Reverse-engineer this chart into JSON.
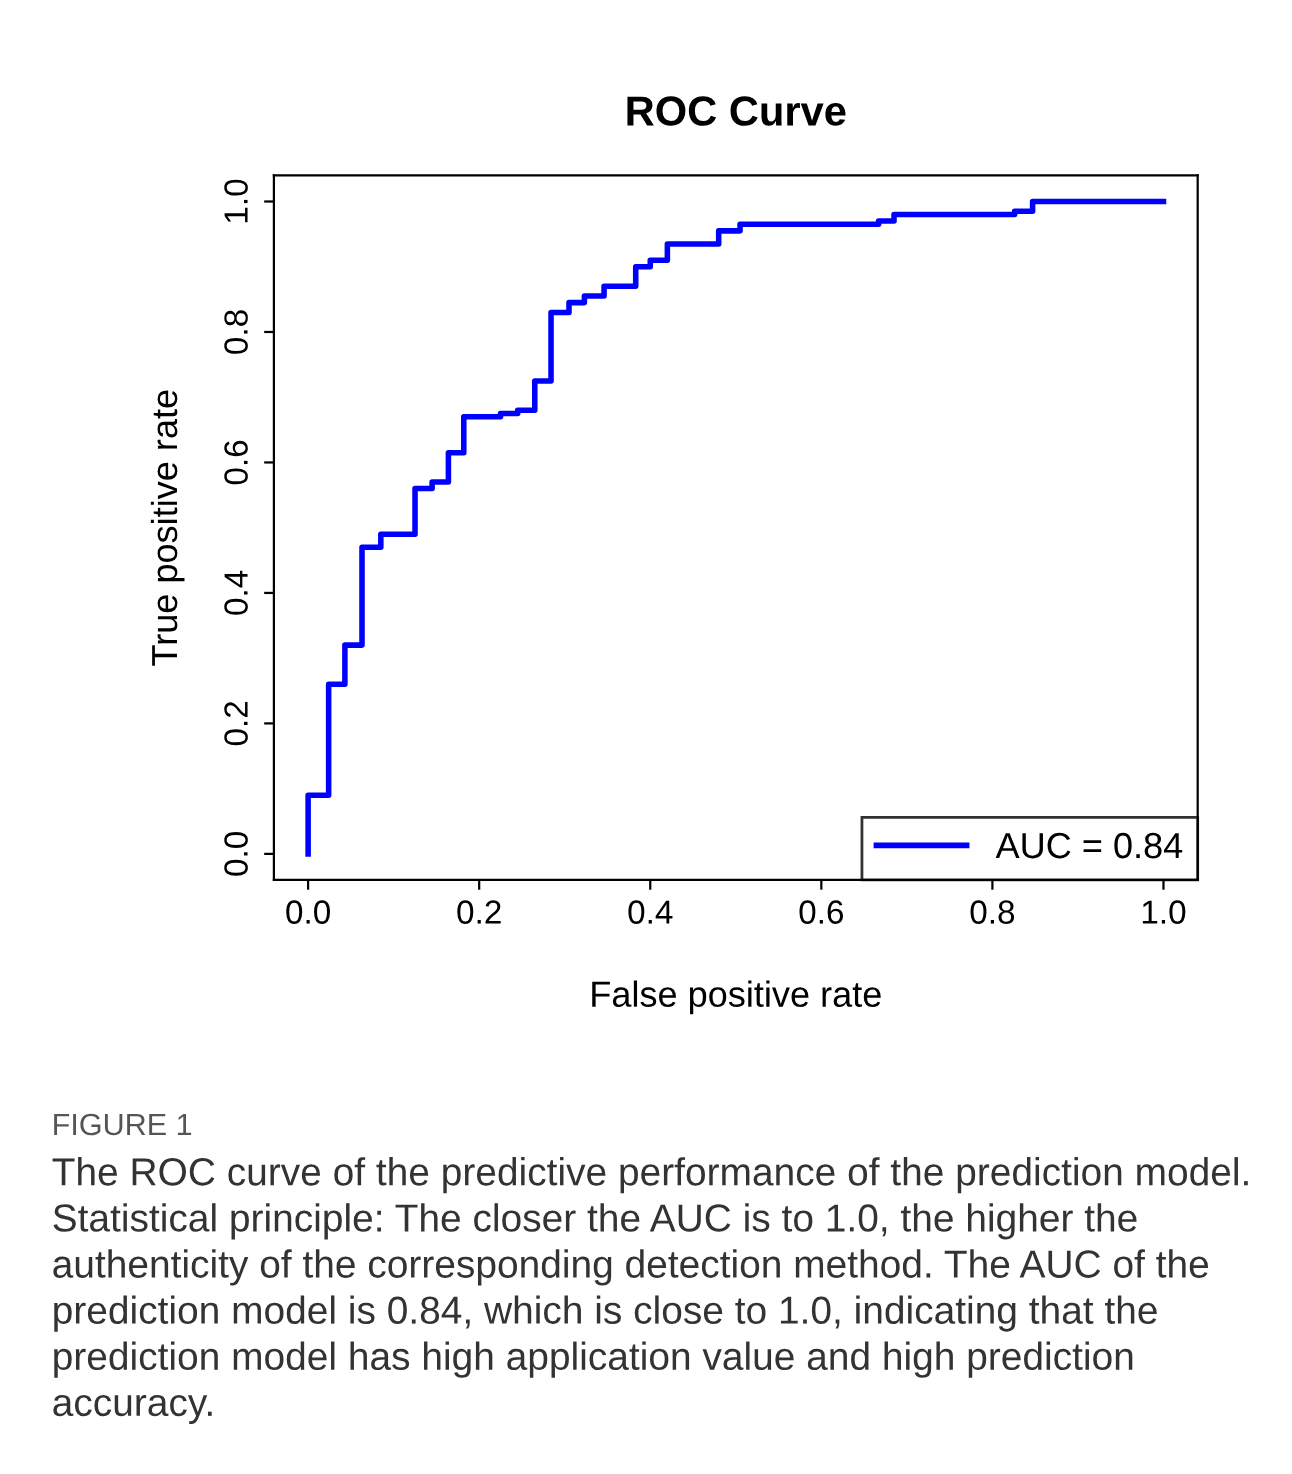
{
  "chart_data": {
    "type": "step",
    "title": "ROC Curve",
    "xlabel": "False positive rate",
    "ylabel": "True positive rate",
    "series": [
      {
        "name": "AUC = 0.84",
        "color": "#0000ff",
        "x": [
          0,
          0,
          0.024,
          0.043,
          0.063,
          0.085,
          0.125,
          0.145,
          0.164,
          0.182,
          0.225,
          0.245,
          0.265,
          0.284,
          0.305,
          0.323,
          0.346,
          0.383,
          0.4,
          0.42,
          0.48,
          0.505,
          0.667,
          0.685,
          0.826,
          0.847,
          1.0
        ],
        "values": [
          0,
          0.09,
          0.26,
          0.32,
          0.47,
          0.49,
          0.56,
          0.57,
          0.615,
          0.67,
          0.675,
          0.68,
          0.725,
          0.83,
          0.845,
          0.855,
          0.87,
          0.9,
          0.91,
          0.935,
          0.955,
          0.965,
          0.97,
          0.98,
          0.985,
          1.0,
          1.0
        ]
      }
    ],
    "xlim": [
      -0.04,
      1.04
    ],
    "ylim": [
      -0.04,
      1.04
    ],
    "xticks": [
      {
        "value": 0,
        "label": "0.0"
      },
      0.2,
      0.4,
      0.6,
      0.8,
      {
        "value": 1,
        "label": "1.0"
      }
    ],
    "yticks": [
      {
        "value": 0,
        "label": "0.0"
      },
      0.2,
      0.4,
      0.6,
      0.8,
      {
        "value": 1,
        "label": "1.0"
      }
    ],
    "grid": false,
    "legend": "bottom right",
    "annotations": [
      "FIGURE 1",
      "The ROC curve of the predictive performance of the prediction model. Statistical principle: The closer the AUC is to 1.0, the higher the authenticity of the corresponding detection method. The AUC of the prediction model is 0.84, which is close to 1.0, indicating that the prediction model has high application value and high prediction accuracy."
    ]
  }
}
